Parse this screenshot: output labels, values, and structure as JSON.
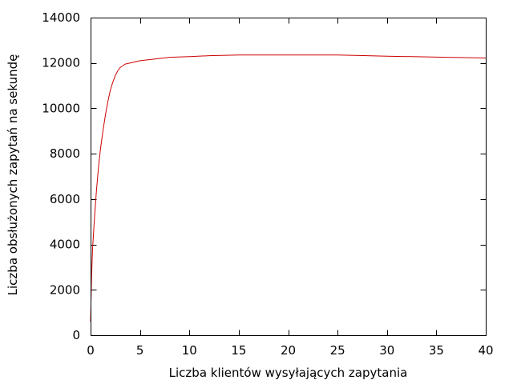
{
  "chart_data": {
    "type": "line",
    "title": "",
    "xlabel": "Liczba klientów wysyłających zapytania",
    "ylabel": "Liczba obsłużonych zapytań na sekundę",
    "xlim": [
      0,
      40
    ],
    "ylim": [
      0,
      14000
    ],
    "x_ticks": [
      0,
      5,
      10,
      15,
      20,
      25,
      30,
      35,
      40
    ],
    "y_ticks": [
      0,
      2000,
      4000,
      6000,
      8000,
      10000,
      12000,
      14000
    ],
    "grid": false,
    "legend": "none",
    "series": [
      {
        "color": "#cc0000",
        "x": [
          0,
          0.1,
          0.2,
          0.4,
          0.6,
          0.8,
          1.0,
          1.25,
          1.5,
          1.75,
          2.0,
          2.25,
          2.5,
          2.75,
          3.0,
          3.5,
          4.0,
          5,
          6,
          8,
          10,
          12,
          15,
          20,
          25,
          28,
          30,
          35,
          40
        ],
        "y": [
          600,
          2600,
          3800,
          5200,
          6400,
          7400,
          8200,
          9000,
          9700,
          10300,
          10800,
          11150,
          11450,
          11650,
          11800,
          11950,
          12000,
          12100,
          12150,
          12250,
          12280,
          12320,
          12350,
          12350,
          12350,
          12320,
          12300,
          12260,
          12220
        ]
      }
    ]
  }
}
